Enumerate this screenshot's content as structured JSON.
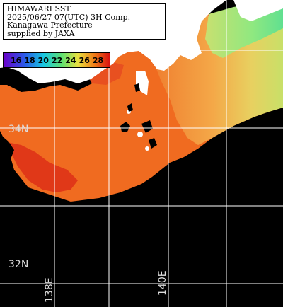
{
  "info": {
    "line1": "HIMAWARI SST",
    "line2": "2025/06/27 07(UTC) 3H Comp.",
    "line3": "Kanagawa Prefecture",
    "line4": "supplied by JAXA"
  },
  "legend": {
    "labels": [
      "16",
      "18",
      "20",
      "22",
      "24",
      "26",
      "28"
    ]
  },
  "grid": {
    "lat_labels": [
      "34N",
      "32N"
    ],
    "lon_labels": [
      "138E",
      "140E"
    ]
  },
  "colors": {
    "ocean_warm": "#f06b20",
    "ocean_hot": "#e03818",
    "ocean_cool": "#f0c060",
    "ocean_cooler": "#c8e070",
    "ocean_coolest": "#70e080",
    "land": "#ffffff",
    "cloud": "#000000",
    "grid": "#ffffff"
  }
}
